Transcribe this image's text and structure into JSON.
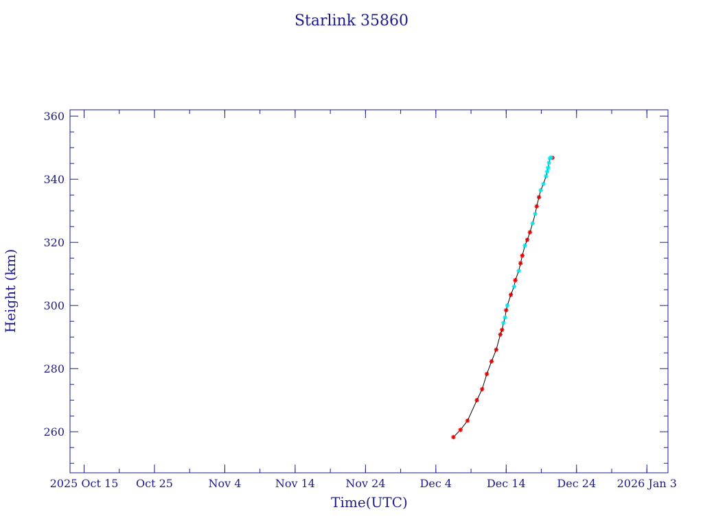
{
  "chart_data": {
    "type": "scatter",
    "title": "Starlink 35860",
    "xlabel": "Time(UTC)",
    "ylabel": "Height (km)",
    "x_axis_type": "date",
    "xlim": [
      "2025-10-13",
      "2026-01-06"
    ],
    "ylim": [
      247,
      362
    ],
    "x_ticks": [
      {
        "date": "2025-10-15",
        "label": "2025 Oct 15"
      },
      {
        "date": "2025-10-25",
        "label": "Oct 25"
      },
      {
        "date": "2025-11-04",
        "label": "Nov  4"
      },
      {
        "date": "2025-11-14",
        "label": "Nov 14"
      },
      {
        "date": "2025-11-24",
        "label": "Nov 24"
      },
      {
        "date": "2025-12-04",
        "label": "Dec  4"
      },
      {
        "date": "2025-12-14",
        "label": "Dec 14"
      },
      {
        "date": "2025-12-24",
        "label": "Dec 24"
      },
      {
        "date": "2026-01-03",
        "label": "2026 Jan  3"
      }
    ],
    "y_ticks": [
      260,
      280,
      300,
      320,
      340,
      360
    ],
    "grid": false,
    "colors": {
      "axis": "#1a1a8c",
      "line": "#000000",
      "red_points": "#e00000",
      "cyan_points": "#00e5ee"
    },
    "series": [
      {
        "marker": "red",
        "points": [
          [
            "2025-12-06 12:00",
            258.3
          ],
          [
            "2025-12-07 12:00",
            260.6
          ],
          [
            "2025-12-08 12:00",
            263.5
          ],
          [
            "2025-12-09 20:00",
            270.0
          ],
          [
            "2025-12-10 14:00",
            273.5
          ],
          [
            "2025-12-11 06:00",
            278.3
          ],
          [
            "2025-12-11 22:00",
            282.3
          ],
          [
            "2025-12-12 14:00",
            286.0
          ],
          [
            "2025-12-13 04:00",
            290.8
          ],
          [
            "2025-12-13 10:00",
            292.3
          ],
          [
            "2025-12-14 00:00",
            298.5
          ],
          [
            "2025-12-14 16:00",
            303.4
          ],
          [
            "2025-12-15 07:00",
            308.0
          ],
          [
            "2025-12-16 01:00",
            313.4
          ],
          [
            "2025-12-16 07:00",
            315.8
          ],
          [
            "2025-12-17 00:00",
            320.8
          ],
          [
            "2025-12-17 09:00",
            323.2
          ],
          [
            "2025-12-18 08:00",
            331.4
          ],
          [
            "2025-12-18 16:00",
            334.3
          ],
          [
            "2025-12-20 14:00",
            346.8
          ]
        ]
      },
      {
        "marker": "cyan",
        "points": [
          [
            "2025-12-13 15:00",
            294.5
          ],
          [
            "2025-12-13 20:00",
            296.2
          ],
          [
            "2025-12-14 04:00",
            300.0
          ],
          [
            "2025-12-15 03:00",
            306.0
          ],
          [
            "2025-12-15 19:00",
            311.0
          ],
          [
            "2025-12-16 16:00",
            319.0
          ],
          [
            "2025-12-17 18:00",
            326.0
          ],
          [
            "2025-12-18 03:00",
            329.0
          ],
          [
            "2025-12-18 22:00",
            336.5
          ],
          [
            "2025-12-19 07:00",
            338.5
          ],
          [
            "2025-12-19 16:00",
            341.0
          ],
          [
            "2025-12-19 20:00",
            342.4
          ],
          [
            "2025-12-19 23:00",
            343.6
          ],
          [
            "2025-12-20 02:00",
            345.2
          ],
          [
            "2025-12-20 05:00",
            346.6
          ],
          [
            "2025-12-20 09:00",
            346.9
          ]
        ]
      }
    ]
  }
}
